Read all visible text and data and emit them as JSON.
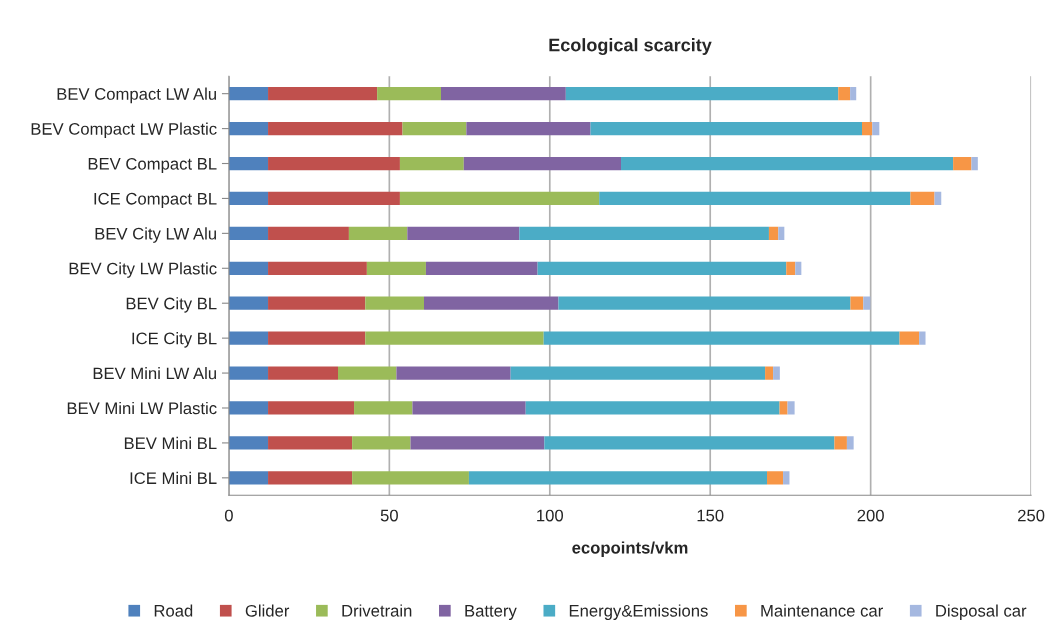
{
  "chart_data": {
    "type": "bar",
    "orientation": "horizontal",
    "stacked": true,
    "title": "Ecological scarcity",
    "xlabel": "ecopoints/vkm",
    "categories": [
      "BEV Compact LW Alu",
      "BEV Compact LW Plastic",
      "BEV Compact BL",
      "ICE Compact BL",
      "BEV City LW Alu",
      "BEV City LW Plastic",
      "BEV City BL",
      "ICE City BL",
      "BEV Mini LW Alu",
      "BEV Mini LW Plastic",
      "BEV Mini BL",
      "ICE Mini BL"
    ],
    "series": [
      {
        "name": "Road",
        "color": "#4f81bd",
        "values": [
          12.2,
          12.2,
          12.2,
          12.2,
          12.2,
          12.2,
          12.2,
          12.2,
          12.2,
          12.2,
          12.2,
          12.2
        ]
      },
      {
        "name": "Glider",
        "color": "#c0504d",
        "values": [
          34.0,
          41.9,
          41.1,
          41.1,
          25.2,
          30.8,
          30.3,
          30.3,
          21.8,
          26.8,
          26.2,
          26.2
        ]
      },
      {
        "name": "Drivetrain",
        "color": "#9bbb59",
        "values": [
          19.9,
          19.9,
          19.9,
          62.1,
          18.2,
          18.4,
          18.3,
          55.6,
          18.2,
          18.2,
          18.2,
          36.4
        ]
      },
      {
        "name": "Battery",
        "color": "#8064a2",
        "values": [
          38.9,
          38.7,
          49.0,
          0,
          34.9,
          34.8,
          41.9,
          0,
          35.6,
          35.3,
          41.7,
          0
        ]
      },
      {
        "name": "Energy&Emissions",
        "color": "#4bacc6",
        "values": [
          84.9,
          84.6,
          103.5,
          97.0,
          77.8,
          77.5,
          91.0,
          110.9,
          79.3,
          79.1,
          90.4,
          92.9
        ]
      },
      {
        "name": "Maintenance car",
        "color": "#f79646",
        "values": [
          3.7,
          3.2,
          5.7,
          7.5,
          2.9,
          2.8,
          4.0,
          6.1,
          2.5,
          2.5,
          3.9,
          5.0
        ]
      },
      {
        "name": "Disposal car",
        "color": "#a5b8e0",
        "values": [
          1.9,
          2.2,
          2.0,
          2.1,
          1.9,
          1.9,
          2.2,
          2.0,
          2.1,
          2.2,
          2.1,
          2.0
        ]
      }
    ],
    "xlim": [
      0,
      250
    ],
    "xticks": [
      0,
      50,
      100,
      150,
      200,
      250
    ],
    "grid": "x",
    "legend": "bottom"
  }
}
